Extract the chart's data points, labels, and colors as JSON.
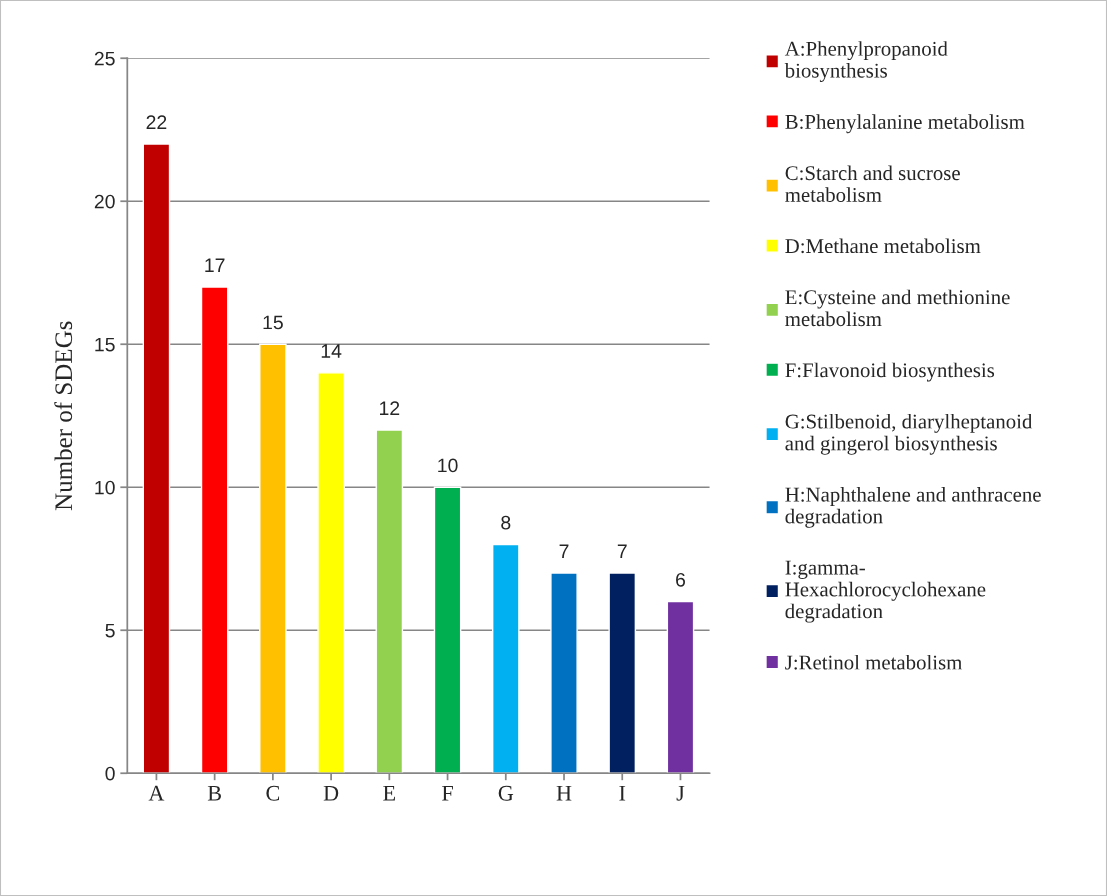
{
  "chart_data": {
    "type": "bar",
    "ylabel": "Number of SDEGs",
    "categories": [
      "A",
      "B",
      "C",
      "D",
      "E",
      "F",
      "G",
      "H",
      "I",
      "J"
    ],
    "series": [
      {
        "name": "A:Phenylpropanoid\nbiosynthesis",
        "color": "#c00000",
        "values": [
          22,
          null,
          null,
          null,
          null,
          null,
          null,
          null,
          null,
          null
        ]
      },
      {
        "name": "B:Phenylalanine metabolism",
        "color": "#ff0000",
        "values": [
          null,
          17,
          null,
          null,
          null,
          null,
          null,
          null,
          null,
          null
        ]
      },
      {
        "name": "C:Starch and sucrose\nmetabolism",
        "color": "#ffc000",
        "values": [
          null,
          null,
          15,
          null,
          null,
          null,
          null,
          null,
          null,
          null
        ]
      },
      {
        "name": "D:Methane metabolism",
        "color": "#ffff00",
        "values": [
          null,
          null,
          null,
          14,
          null,
          null,
          null,
          null,
          null,
          null
        ]
      },
      {
        "name": "E:Cysteine and methionine\nmetabolism",
        "color": "#92d050",
        "values": [
          null,
          null,
          null,
          null,
          12,
          null,
          null,
          null,
          null,
          null
        ]
      },
      {
        "name": "F:Flavonoid biosynthesis",
        "color": "#00b050",
        "values": [
          null,
          null,
          null,
          null,
          null,
          10,
          null,
          null,
          null,
          null
        ]
      },
      {
        "name": "G:Stilbenoid, diarylheptanoid\nand gingerol biosynthesis",
        "color": "#00b0f0",
        "values": [
          null,
          null,
          null,
          null,
          null,
          null,
          8,
          null,
          null,
          null
        ]
      },
      {
        "name": "H:Naphthalene and anthracene\ndegradation",
        "color": "#0070c0",
        "values": [
          null,
          null,
          null,
          null,
          null,
          null,
          null,
          7,
          null,
          null
        ]
      },
      {
        "name": "I:gamma-\nHexachlorocyclohexane\ndegradation",
        "color": "#002060",
        "values": [
          null,
          null,
          null,
          null,
          null,
          null,
          null,
          null,
          7,
          null
        ]
      },
      {
        "name": "J:Retinol metabolism",
        "color": "#7030a0",
        "values": [
          null,
          null,
          null,
          null,
          null,
          null,
          null,
          null,
          null,
          6
        ]
      }
    ],
    "ylim": [
      0,
      25
    ],
    "yticks": [
      0,
      5,
      10,
      15,
      20,
      25
    ],
    "grid": "y",
    "data_labels": true,
    "legend": "right"
  }
}
